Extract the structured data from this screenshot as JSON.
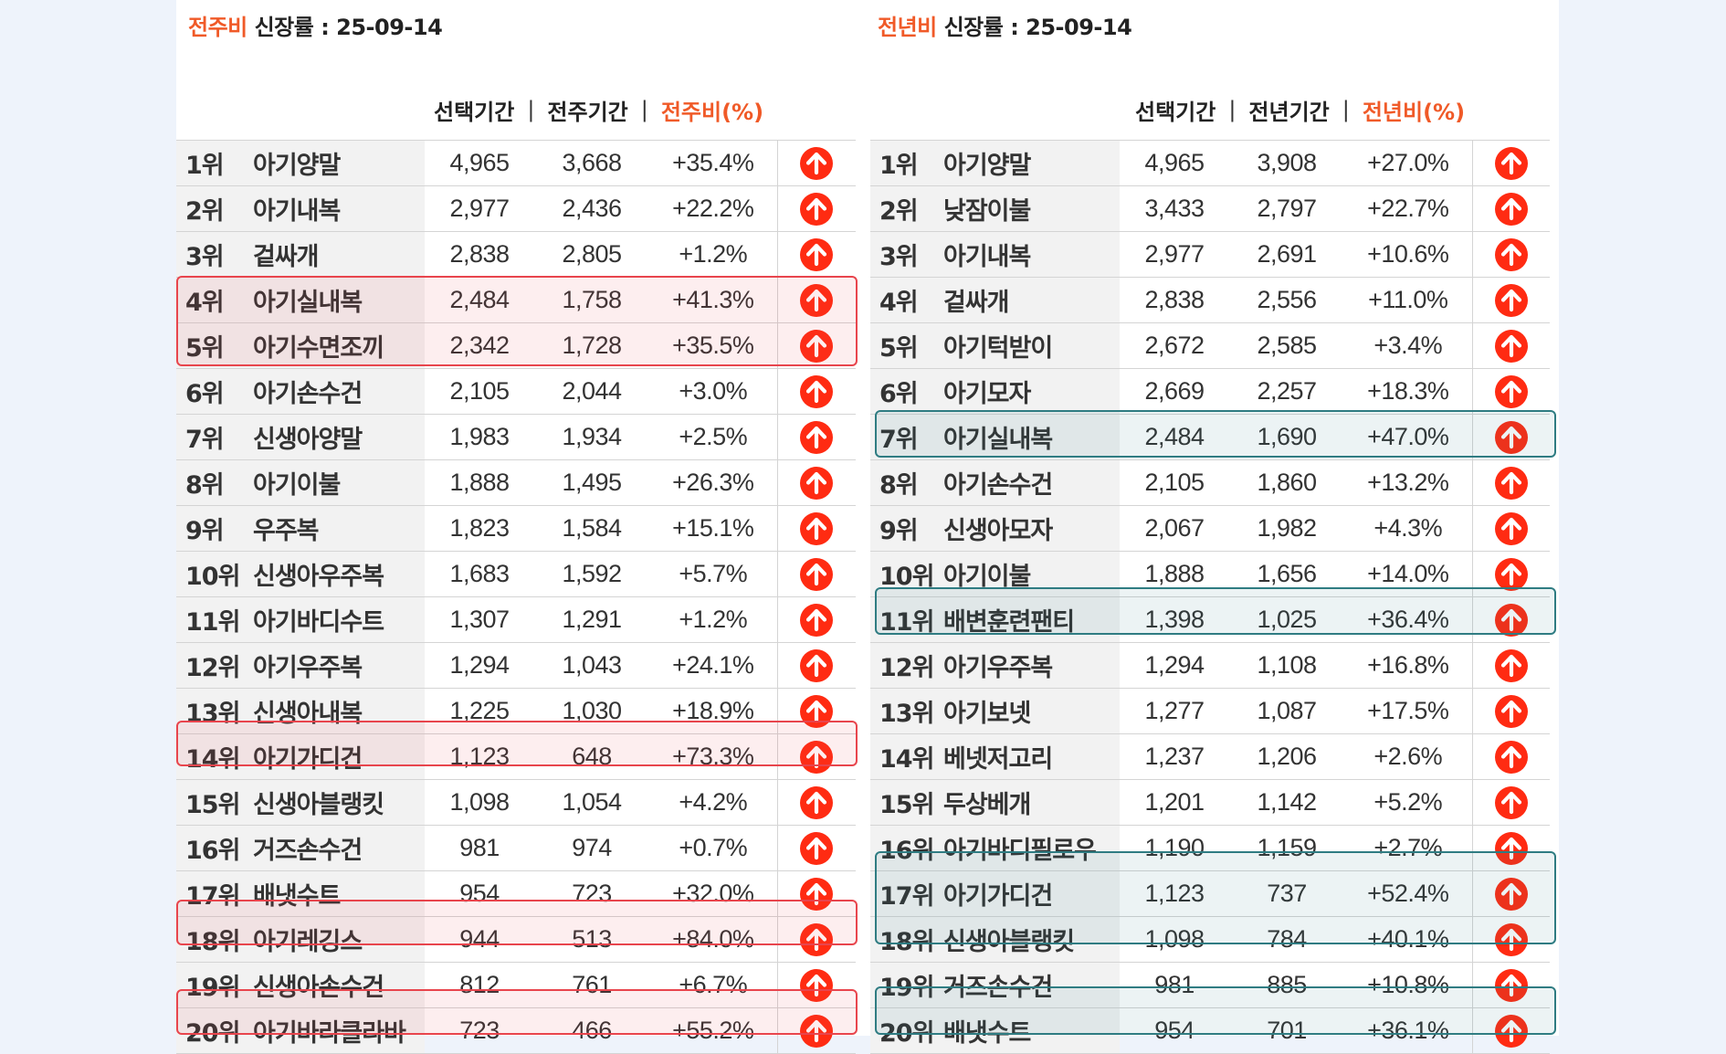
{
  "left": {
    "title_accent": "전주비",
    "title_rest": " 신장률  : 25-09-14",
    "col_selected": "선택기간",
    "col_sep": "|",
    "col_previous": "전주기간",
    "col_change": "전주비(%)",
    "rows": [
      {
        "rank": "1위",
        "name": "아기양말",
        "selected": "4,965",
        "previous": "3,668",
        "change": "+35.4%"
      },
      {
        "rank": "2위",
        "name": "아기내복",
        "selected": "2,977",
        "previous": "2,436",
        "change": "+22.2%"
      },
      {
        "rank": "3위",
        "name": "겉싸개",
        "selected": "2,838",
        "previous": "2,805",
        "change": "+1.2%"
      },
      {
        "rank": "4위",
        "name": "아기실내복",
        "selected": "2,484",
        "previous": "1,758",
        "change": "+41.3%"
      },
      {
        "rank": "5위",
        "name": "아기수면조끼",
        "selected": "2,342",
        "previous": "1,728",
        "change": "+35.5%"
      },
      {
        "rank": "6위",
        "name": "아기손수건",
        "selected": "2,105",
        "previous": "2,044",
        "change": "+3.0%"
      },
      {
        "rank": "7위",
        "name": "신생아양말",
        "selected": "1,983",
        "previous": "1,934",
        "change": "+2.5%"
      },
      {
        "rank": "8위",
        "name": "아기이불",
        "selected": "1,888",
        "previous": "1,495",
        "change": "+26.3%"
      },
      {
        "rank": "9위",
        "name": "우주복",
        "selected": "1,823",
        "previous": "1,584",
        "change": "+15.1%"
      },
      {
        "rank": "10위",
        "name": "신생아우주복",
        "selected": "1,683",
        "previous": "1,592",
        "change": "+5.7%"
      },
      {
        "rank": "11위",
        "name": "아기바디수트",
        "selected": "1,307",
        "previous": "1,291",
        "change": "+1.2%"
      },
      {
        "rank": "12위",
        "name": "아기우주복",
        "selected": "1,294",
        "previous": "1,043",
        "change": "+24.1%"
      },
      {
        "rank": "13위",
        "name": "신생아내복",
        "selected": "1,225",
        "previous": "1,030",
        "change": "+18.9%"
      },
      {
        "rank": "14위",
        "name": "아기가디건",
        "selected": "1,123",
        "previous": "648",
        "change": "+73.3%"
      },
      {
        "rank": "15위",
        "name": "신생아블랭킷",
        "selected": "1,098",
        "previous": "1,054",
        "change": "+4.2%"
      },
      {
        "rank": "16위",
        "name": "거즈손수건",
        "selected": "981",
        "previous": "974",
        "change": "+0.7%"
      },
      {
        "rank": "17위",
        "name": "배냇수트",
        "selected": "954",
        "previous": "723",
        "change": "+32.0%"
      },
      {
        "rank": "18위",
        "name": "아기레깅스",
        "selected": "944",
        "previous": "513",
        "change": "+84.0%"
      },
      {
        "rank": "19위",
        "name": "신생아손수건",
        "selected": "812",
        "previous": "761",
        "change": "+6.7%"
      },
      {
        "rank": "20위",
        "name": "아기바라클라바",
        "selected": "723",
        "previous": "466",
        "change": "+55.2%"
      }
    ]
  },
  "right": {
    "title_accent": "전년비",
    "title_rest": " 신장률  : 25-09-14",
    "col_selected": "선택기간",
    "col_sep": "|",
    "col_previous": "전년기간",
    "col_change": "전년비(%)",
    "rows": [
      {
        "rank": "1위",
        "name": "아기양말",
        "selected": "4,965",
        "previous": "3,908",
        "change": "+27.0%"
      },
      {
        "rank": "2위",
        "name": "낮잠이불",
        "selected": "3,433",
        "previous": "2,797",
        "change": "+22.7%"
      },
      {
        "rank": "3위",
        "name": "아기내복",
        "selected": "2,977",
        "previous": "2,691",
        "change": "+10.6%"
      },
      {
        "rank": "4위",
        "name": "겉싸개",
        "selected": "2,838",
        "previous": "2,556",
        "change": "+11.0%"
      },
      {
        "rank": "5위",
        "name": "아기턱받이",
        "selected": "2,672",
        "previous": "2,585",
        "change": "+3.4%"
      },
      {
        "rank": "6위",
        "name": "아기모자",
        "selected": "2,669",
        "previous": "2,257",
        "change": "+18.3%"
      },
      {
        "rank": "7위",
        "name": "아기실내복",
        "selected": "2,484",
        "previous": "1,690",
        "change": "+47.0%"
      },
      {
        "rank": "8위",
        "name": "아기손수건",
        "selected": "2,105",
        "previous": "1,860",
        "change": "+13.2%"
      },
      {
        "rank": "9위",
        "name": "신생아모자",
        "selected": "2,067",
        "previous": "1,982",
        "change": "+4.3%"
      },
      {
        "rank": "10위",
        "name": "아기이불",
        "selected": "1,888",
        "previous": "1,656",
        "change": "+14.0%"
      },
      {
        "rank": "11위",
        "name": "배변훈련팬티",
        "selected": "1,398",
        "previous": "1,025",
        "change": "+36.4%"
      },
      {
        "rank": "12위",
        "name": "아기우주복",
        "selected": "1,294",
        "previous": "1,108",
        "change": "+16.8%"
      },
      {
        "rank": "13위",
        "name": "아기보넷",
        "selected": "1,277",
        "previous": "1,087",
        "change": "+17.5%"
      },
      {
        "rank": "14위",
        "name": "베넷저고리",
        "selected": "1,237",
        "previous": "1,206",
        "change": "+2.6%"
      },
      {
        "rank": "15위",
        "name": "두상베개",
        "selected": "1,201",
        "previous": "1,142",
        "change": "+5.2%"
      },
      {
        "rank": "16위",
        "name": "아기바디필로우",
        "selected": "1,190",
        "previous": "1,159",
        "change": "+2.7%"
      },
      {
        "rank": "17위",
        "name": "아기가디건",
        "selected": "1,123",
        "previous": "737",
        "change": "+52.4%"
      },
      {
        "rank": "18위",
        "name": "신생아블랭킷",
        "selected": "1,098",
        "previous": "784",
        "change": "+40.1%"
      },
      {
        "rank": "19위",
        "name": "거즈손수건",
        "selected": "981",
        "previous": "885",
        "change": "+10.8%"
      },
      {
        "rank": "20위",
        "name": "배냇수트",
        "selected": "954",
        "previous": "701",
        "change": "+36.1%"
      }
    ]
  },
  "colors": {
    "accent": "#f05a28",
    "arrow": "#ff2b12",
    "highlight_red": "#e8454d",
    "highlight_teal": "#2f7c82"
  }
}
